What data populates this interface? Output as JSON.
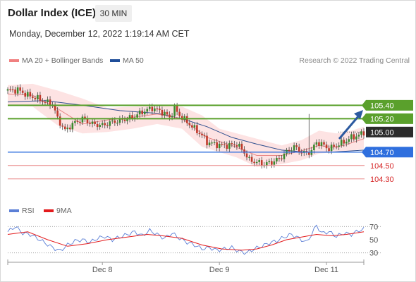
{
  "header": {
    "title": "Dollar Index (ICE)",
    "timeframe": "30 MIN",
    "datetime": "Monday, December 12, 2022 1:19:14 AM CET"
  },
  "legend_top": [
    {
      "label": "MA 20 + Bollinger Bands",
      "color": "#f08080"
    },
    {
      "label": "MA 50",
      "color": "#1f4e99"
    }
  ],
  "credit": "Research © 2022 Trading Central",
  "legend_bottom": [
    {
      "label": "RSI",
      "color": "#5b7fd6"
    },
    {
      "label": "9MA",
      "color": "#e31a1c"
    }
  ],
  "colors": {
    "up": "#3a8a2e",
    "down": "#c0392b",
    "resistance": "#5aa02c",
    "support": "#2f6fde",
    "target": "#e88585",
    "arrow": "#2c5aa0"
  },
  "chart_data": [
    {
      "type": "candlestick",
      "x_ticks": [
        "Dec 8",
        "Dec 9",
        "Dec 11"
      ],
      "ylim": [
        104.15,
        105.73
      ],
      "price_levels": [
        {
          "value": 105.4,
          "label": "105.40",
          "kind": "resistance"
        },
        {
          "value": 105.2,
          "label": "105.20",
          "kind": "resistance"
        },
        {
          "value": 105.0,
          "label": "105.00",
          "kind": "current"
        },
        {
          "value": 104.7,
          "label": "104.70",
          "kind": "support"
        },
        {
          "value": 104.5,
          "label": "104.50",
          "kind": "target"
        },
        {
          "value": 104.3,
          "label": "104.30",
          "kind": "target"
        }
      ],
      "close_path": [
        [
          0,
          105.62
        ],
        [
          4,
          105.63
        ],
        [
          8,
          105.55
        ],
        [
          12,
          105.5
        ],
        [
          15,
          105.45
        ],
        [
          18,
          105.42
        ],
        [
          20,
          105.2
        ],
        [
          23,
          105.02
        ],
        [
          26,
          105.12
        ],
        [
          30,
          105.2
        ],
        [
          34,
          105.12
        ],
        [
          38,
          105.1
        ],
        [
          42,
          105.15
        ],
        [
          46,
          105.18
        ],
        [
          50,
          105.22
        ],
        [
          54,
          105.3
        ],
        [
          58,
          105.36
        ],
        [
          62,
          105.3
        ],
        [
          65,
          105.22
        ],
        [
          67,
          105.35
        ],
        [
          69,
          105.25
        ],
        [
          72,
          105.15
        ],
        [
          75,
          105.05
        ],
        [
          78,
          104.95
        ],
        [
          80,
          104.85
        ],
        [
          83,
          104.82
        ],
        [
          86,
          104.8
        ],
        [
          89,
          104.8
        ],
        [
          92,
          104.82
        ],
        [
          95,
          104.7
        ],
        [
          97,
          104.58
        ],
        [
          100,
          104.55
        ],
        [
          103,
          104.52
        ],
        [
          106,
          104.55
        ],
        [
          109,
          104.6
        ],
        [
          112,
          104.7
        ],
        [
          115,
          104.78
        ],
        [
          118,
          104.7
        ],
        [
          120,
          104.68
        ],
        [
          122,
          104.72
        ],
        [
          124,
          104.85
        ],
        [
          126,
          104.82
        ],
        [
          129,
          104.75
        ],
        [
          132,
          104.8
        ],
        [
          135,
          104.85
        ],
        [
          138,
          104.92
        ],
        [
          141,
          104.95
        ],
        [
          143,
          105.0
        ]
      ],
      "ma50": [
        [
          0,
          105.45
        ],
        [
          15,
          105.47
        ],
        [
          30,
          105.4
        ],
        [
          45,
          105.32
        ],
        [
          60,
          105.28
        ],
        [
          70,
          105.2
        ],
        [
          80,
          105.08
        ],
        [
          90,
          104.92
        ],
        [
          100,
          104.82
        ],
        [
          110,
          104.73
        ],
        [
          120,
          104.7
        ],
        [
          130,
          104.7
        ],
        [
          143,
          104.73
        ]
      ],
      "ma20": [
        [
          0,
          105.57
        ],
        [
          10,
          105.55
        ],
        [
          20,
          105.35
        ],
        [
          30,
          105.12
        ],
        [
          40,
          105.18
        ],
        [
          50,
          105.22
        ],
        [
          60,
          105.27
        ],
        [
          70,
          105.2
        ],
        [
          80,
          104.92
        ],
        [
          90,
          104.8
        ],
        [
          100,
          104.65
        ],
        [
          110,
          104.65
        ],
        [
          118,
          104.72
        ],
        [
          125,
          104.8
        ],
        [
          130,
          104.77
        ],
        [
          135,
          104.8
        ],
        [
          143,
          104.9
        ]
      ],
      "bb_upper": [
        [
          0,
          105.7
        ],
        [
          10,
          105.72
        ],
        [
          20,
          105.62
        ],
        [
          30,
          105.5
        ],
        [
          40,
          105.36
        ],
        [
          50,
          105.38
        ],
        [
          60,
          105.4
        ],
        [
          70,
          105.38
        ],
        [
          78,
          105.25
        ],
        [
          85,
          105.05
        ],
        [
          92,
          104.98
        ],
        [
          100,
          104.9
        ],
        [
          110,
          104.8
        ],
        [
          118,
          104.88
        ],
        [
          125,
          105.02
        ],
        [
          132,
          104.98
        ],
        [
          138,
          105.02
        ],
        [
          143,
          105.08
        ]
      ],
      "bb_lower": [
        [
          0,
          105.4
        ],
        [
          10,
          105.38
        ],
        [
          20,
          105.1
        ],
        [
          30,
          104.98
        ],
        [
          40,
          105.0
        ],
        [
          50,
          105.05
        ],
        [
          60,
          105.12
        ],
        [
          70,
          105.05
        ],
        [
          78,
          104.78
        ],
        [
          85,
          104.7
        ],
        [
          92,
          104.62
        ],
        [
          100,
          104.48
        ],
        [
          110,
          104.52
        ],
        [
          118,
          104.58
        ],
        [
          125,
          104.68
        ],
        [
          132,
          104.7
        ],
        [
          138,
          104.72
        ],
        [
          143,
          104.75
        ]
      ]
    },
    {
      "type": "line",
      "title": "RSI",
      "ylim": [
        20,
        80
      ],
      "y_ticks": [
        70,
        50,
        30
      ],
      "series": [
        {
          "name": "RSI",
          "values": [
            [
              0,
              62
            ],
            [
              3,
              70
            ],
            [
              6,
              60
            ],
            [
              9,
              58
            ],
            [
              12,
              52
            ],
            [
              15,
              45
            ],
            [
              18,
              38
            ],
            [
              21,
              33
            ],
            [
              24,
              42
            ],
            [
              27,
              48
            ],
            [
              30,
              50
            ],
            [
              33,
              46
            ],
            [
              36,
              52
            ],
            [
              39,
              55
            ],
            [
              42,
              50
            ],
            [
              45,
              54
            ],
            [
              48,
              58
            ],
            [
              51,
              62
            ],
            [
              54,
              56
            ],
            [
              57,
              64
            ],
            [
              60,
              58
            ],
            [
              63,
              52
            ],
            [
              66,
              60
            ],
            [
              69,
              52
            ],
            [
              72,
              46
            ],
            [
              75,
              42
            ],
            [
              78,
              36
            ],
            [
              81,
              38
            ],
            [
              84,
              34
            ],
            [
              87,
              36
            ],
            [
              90,
              38
            ],
            [
              93,
              32
            ],
            [
              96,
              30
            ],
            [
              99,
              36
            ],
            [
              102,
              40
            ],
            [
              105,
              45
            ],
            [
              108,
              48
            ],
            [
              111,
              54
            ],
            [
              114,
              58
            ],
            [
              117,
              52
            ],
            [
              120,
              46
            ],
            [
              122,
              58
            ],
            [
              124,
              72
            ],
            [
              126,
              60
            ],
            [
              129,
              62
            ],
            [
              132,
              55
            ],
            [
              135,
              60
            ],
            [
              138,
              58
            ],
            [
              141,
              64
            ],
            [
              143,
              66
            ]
          ]
        },
        {
          "name": "9MA",
          "values": [
            [
              0,
              58
            ],
            [
              8,
              62
            ],
            [
              16,
              50
            ],
            [
              24,
              40
            ],
            [
              32,
              44
            ],
            [
              40,
              50
            ],
            [
              48,
              54
            ],
            [
              56,
              58
            ],
            [
              62,
              56
            ],
            [
              70,
              52
            ],
            [
              78,
              42
            ],
            [
              86,
              36
            ],
            [
              94,
              34
            ],
            [
              100,
              36
            ],
            [
              106,
              42
            ],
            [
              112,
              50
            ],
            [
              118,
              54
            ],
            [
              124,
              58
            ],
            [
              130,
              56
            ],
            [
              136,
              58
            ],
            [
              143,
              62
            ]
          ]
        }
      ]
    }
  ]
}
